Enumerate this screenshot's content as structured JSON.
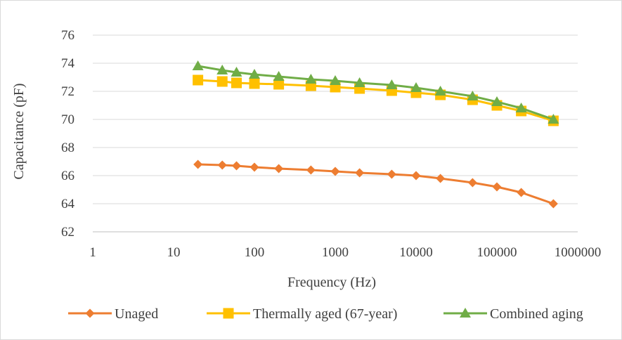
{
  "chart_data": {
    "type": "line",
    "title": "",
    "xlabel": "Frequency (Hz)",
    "ylabel": "Capacitance (pF)",
    "x_scale": "log",
    "xlim": [
      1,
      1000000
    ],
    "ylim": [
      62,
      76
    ],
    "grid": "horizontal",
    "legend_position": "bottom",
    "x_tick_labels": [
      "1",
      "10",
      "100",
      "1000",
      "10000",
      "100000",
      "1000000"
    ],
    "y_tick_labels": [
      "62",
      "64",
      "66",
      "68",
      "70",
      "72",
      "74",
      "76"
    ],
    "x": [
      20,
      40,
      60,
      100,
      200,
      500,
      1000,
      2000,
      5000,
      10000,
      20000,
      50000,
      100000,
      200000,
      500000
    ],
    "series": [
      {
        "name": "Unaged",
        "color": "#ED7D31",
        "marker": "diamond",
        "values": [
          66.8,
          66.75,
          66.7,
          66.6,
          66.5,
          66.4,
          66.3,
          66.2,
          66.1,
          66.0,
          65.8,
          65.5,
          65.2,
          64.8,
          64.0
        ]
      },
      {
        "name": "Thermally aged (67-year)",
        "color": "#FFC000",
        "marker": "square",
        "values": [
          72.8,
          72.7,
          72.6,
          72.55,
          72.5,
          72.4,
          72.3,
          72.2,
          72.05,
          71.9,
          71.75,
          71.4,
          71.0,
          70.6,
          69.9
        ]
      },
      {
        "name": "Combined aging",
        "color": "#70AD47",
        "marker": "triangle",
        "values": [
          73.8,
          73.5,
          73.35,
          73.2,
          73.05,
          72.85,
          72.75,
          72.6,
          72.45,
          72.25,
          72.0,
          71.65,
          71.25,
          70.8,
          70.0
        ]
      }
    ]
  }
}
